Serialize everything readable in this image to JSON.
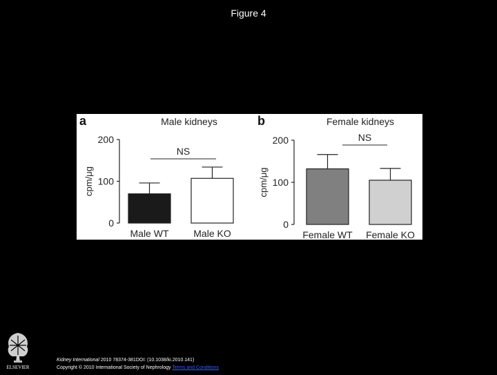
{
  "page": {
    "title": "Figure 4"
  },
  "chart_data": [
    {
      "type": "bar",
      "panel_label": "a",
      "title": "Male kidneys",
      "ylabel": "cpm/μg",
      "ylim": [
        0,
        200
      ],
      "yticks": [
        "0",
        "100",
        "200"
      ],
      "categories": [
        "Male WT",
        "Male KO"
      ],
      "values": [
        70,
        107
      ],
      "errors": [
        26,
        27
      ],
      "colors": [
        "#1a1a1a",
        "#ffffff"
      ],
      "annotation": "NS"
    },
    {
      "type": "bar",
      "panel_label": "b",
      "title": "Female kidneys",
      "ylabel": "cpm/μg",
      "ylim": [
        0,
        200
      ],
      "yticks": [
        "0",
        "100",
        "200"
      ],
      "categories": [
        "Female WT",
        "Female KO"
      ],
      "values": [
        132,
        105
      ],
      "errors": [
        34,
        28
      ],
      "colors": [
        "#808080",
        "#d0d0d0"
      ],
      "annotation": "NS"
    }
  ],
  "citation": {
    "journal": "Kidney International",
    "ref": " 2010 78374-381DOI: (10.1038/ki.2010.141)",
    "copyright": "Copyright © 2010 International Society of Nephrology",
    "link": "Terms and Conditions"
  },
  "logo": {
    "text": "ELSEVIER",
    "icon": "elsevier-tree-logo"
  }
}
